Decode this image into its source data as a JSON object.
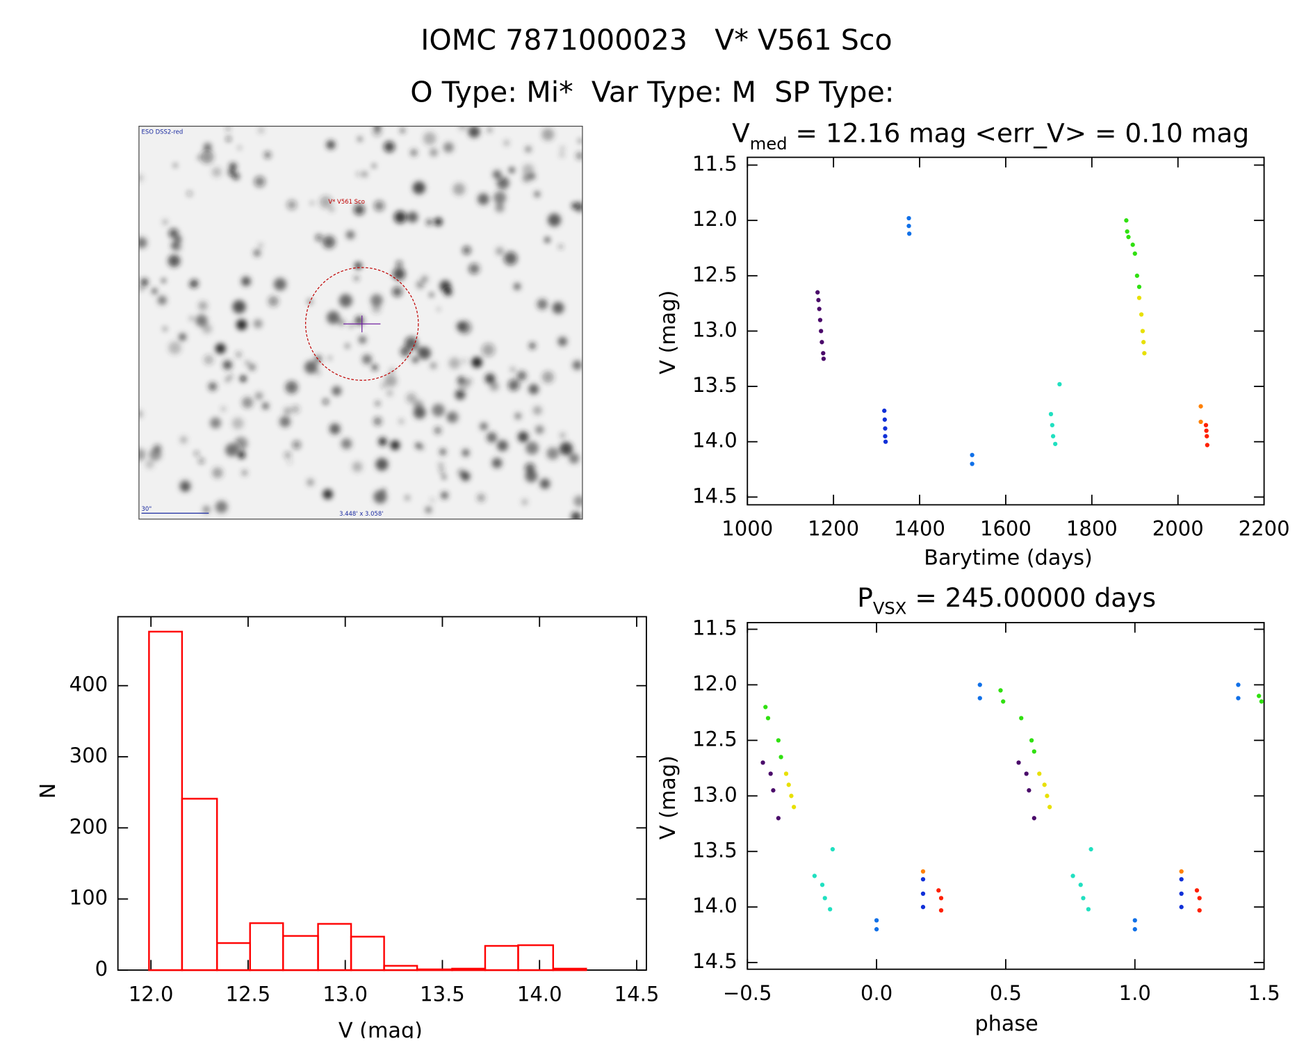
{
  "header": {
    "title": "IOMC 7871000023   V* V561 Sco",
    "subtitle": "O Type: Mi*  Var Type: M  SP Type:"
  },
  "image": {
    "survey": "ESO DSS2-red",
    "target": "V* V561 Sco",
    "scale": "30\"",
    "size": "3.448' x 3.058'"
  },
  "chart_data": [
    {
      "type": "scatter",
      "title": "V",
      "title_sub": "med",
      "title_rest": " = 12.16 mag <err_V> = 0.10 mag",
      "x_label": "Barytime (days)",
      "y_label": "V (mag)",
      "xlim": [
        1000,
        2200
      ],
      "ylim": [
        14.57,
        11.43
      ],
      "xticks": [
        1000,
        1200,
        1400,
        1600,
        1800,
        2000,
        2200
      ],
      "yticks": [
        11.5,
        {
          "value": 12,
          "label": "12.0"
        },
        12.5,
        {
          "value": 13,
          "label": "13.0"
        },
        13.5,
        {
          "value": 14,
          "label": "14.0"
        },
        14.5
      ],
      "series": [
        {
          "color": "#4a0a6a",
          "x": [
            1163,
            1165,
            1167,
            1169,
            1171,
            1173,
            1176,
            1177
          ],
          "y": [
            12.65,
            12.72,
            12.8,
            12.9,
            13.0,
            13.1,
            13.2,
            13.25
          ]
        },
        {
          "color": "#1070e8",
          "x": [
            1375,
            1375,
            1376,
            1522,
            1522
          ],
          "y": [
            11.98,
            12.05,
            12.12,
            14.12,
            14.2
          ]
        },
        {
          "color": "#1030d8",
          "x": [
            1318,
            1319,
            1320,
            1320,
            1321
          ],
          "y": [
            13.72,
            13.8,
            13.88,
            13.95,
            14.0
          ]
        },
        {
          "color": "#30e010",
          "x": [
            1880,
            1882,
            1885,
            1895,
            1900,
            1905,
            1910
          ],
          "y": [
            12.0,
            12.1,
            12.15,
            12.22,
            12.3,
            12.5,
            12.6
          ]
        },
        {
          "color": "#e8e000",
          "x": [
            1910,
            1915,
            1918,
            1920,
            1922
          ],
          "y": [
            12.7,
            12.85,
            13.0,
            13.1,
            13.2
          ]
        },
        {
          "color": "#20e0c0",
          "x": [
            1705,
            1708,
            1710,
            1715,
            1725
          ],
          "y": [
            13.75,
            13.85,
            13.95,
            14.02,
            13.48
          ]
        },
        {
          "color": "#ff8000",
          "x": [
            2053,
            2053
          ],
          "y": [
            13.68,
            13.82
          ]
        },
        {
          "color": "#ff2000",
          "x": [
            2065,
            2066,
            2067,
            2068
          ],
          "y": [
            13.85,
            13.9,
            13.95,
            14.03
          ]
        }
      ]
    },
    {
      "type": "scatter",
      "title": "P",
      "title_sub": "VSX",
      "title_rest": " = 245.00000 days",
      "x_label": "phase",
      "y_label": "V (mag)",
      "xlim": [
        -0.5,
        1.5
      ],
      "ylim": [
        14.56,
        11.44
      ],
      "xticks": [
        {
          "value": -0.5,
          "label": "−0.5"
        },
        {
          "value": 0,
          "label": "0.0"
        },
        0.5,
        {
          "value": 1,
          "label": "1.0"
        },
        1.5
      ],
      "yticks": [
        11.5,
        {
          "value": 12,
          "label": "12.0"
        },
        12.5,
        {
          "value": 13,
          "label": "13.0"
        },
        13.5,
        {
          "value": 14,
          "label": "14.0"
        },
        14.5
      ],
      "series": [
        {
          "color": "#30e010",
          "x": [
            -0.43,
            -0.42,
            -0.38,
            -0.37,
            0.48,
            0.49,
            0.56,
            0.6,
            0.61,
            1.48,
            1.49
          ],
          "y": [
            12.2,
            12.3,
            12.5,
            12.65,
            12.05,
            12.15,
            12.3,
            12.5,
            12.6,
            12.1,
            12.15
          ]
        },
        {
          "color": "#4a0a6a",
          "x": [
            -0.44,
            -0.41,
            -0.4,
            -0.38,
            0.55,
            0.58,
            0.59,
            0.61
          ],
          "y": [
            12.7,
            12.8,
            12.95,
            13.2,
            12.7,
            12.8,
            12.95,
            13.2
          ]
        },
        {
          "color": "#e8e000",
          "x": [
            -0.35,
            -0.34,
            -0.33,
            -0.32,
            0.63,
            0.65,
            0.66,
            0.67
          ],
          "y": [
            12.8,
            12.9,
            13.0,
            13.1,
            12.8,
            12.9,
            13.0,
            13.1
          ]
        },
        {
          "color": "#1070e8",
          "x": [
            0.4,
            0.4,
            0.0,
            0.0,
            1.4,
            1.4,
            1.0,
            1.0
          ],
          "y": [
            12.0,
            12.12,
            14.12,
            14.2,
            12.0,
            12.12,
            14.12,
            14.2
          ]
        },
        {
          "color": "#1030d8",
          "x": [
            0.18,
            0.18,
            0.18,
            1.18,
            1.18,
            1.18
          ],
          "y": [
            13.75,
            13.88,
            14.0,
            13.75,
            13.88,
            14.0
          ]
        },
        {
          "color": "#20e0c0",
          "x": [
            -0.24,
            -0.21,
            -0.2,
            -0.18,
            -0.17,
            0.76,
            0.79,
            0.8,
            0.82,
            0.83
          ],
          "y": [
            13.72,
            13.8,
            13.92,
            14.02,
            13.48,
            13.72,
            13.8,
            13.92,
            14.02,
            13.48
          ]
        },
        {
          "color": "#ff8000",
          "x": [
            0.18,
            1.18
          ],
          "y": [
            13.68,
            13.68
          ]
        },
        {
          "color": "#ff2000",
          "x": [
            0.24,
            0.25,
            0.25,
            1.24,
            1.25,
            1.25
          ],
          "y": [
            13.85,
            13.92,
            14.03,
            13.85,
            13.92,
            14.03
          ]
        }
      ]
    },
    {
      "type": "histogram",
      "x_label": "V (mag)",
      "y_label": "N",
      "color": "#ff0000",
      "xlim": [
        11.83,
        14.55
      ],
      "ylim": [
        0,
        497
      ],
      "xticks": [
        {
          "value": 12,
          "label": "12.0"
        },
        12.5,
        {
          "value": 13,
          "label": "13.0"
        },
        13.5,
        {
          "value": 14,
          "label": "14.0"
        },
        14.5
      ],
      "yticks": [
        0,
        100,
        200,
        300,
        400
      ],
      "bins": [
        11.99,
        12.16,
        12.34,
        12.51,
        12.68,
        12.86,
        13.03,
        13.2,
        13.37,
        13.55,
        13.72,
        13.89,
        14.07,
        14.24
      ],
      "values": [
        476,
        241,
        38,
        66,
        48,
        65,
        47,
        6,
        1,
        2,
        34,
        35,
        2
      ]
    }
  ]
}
